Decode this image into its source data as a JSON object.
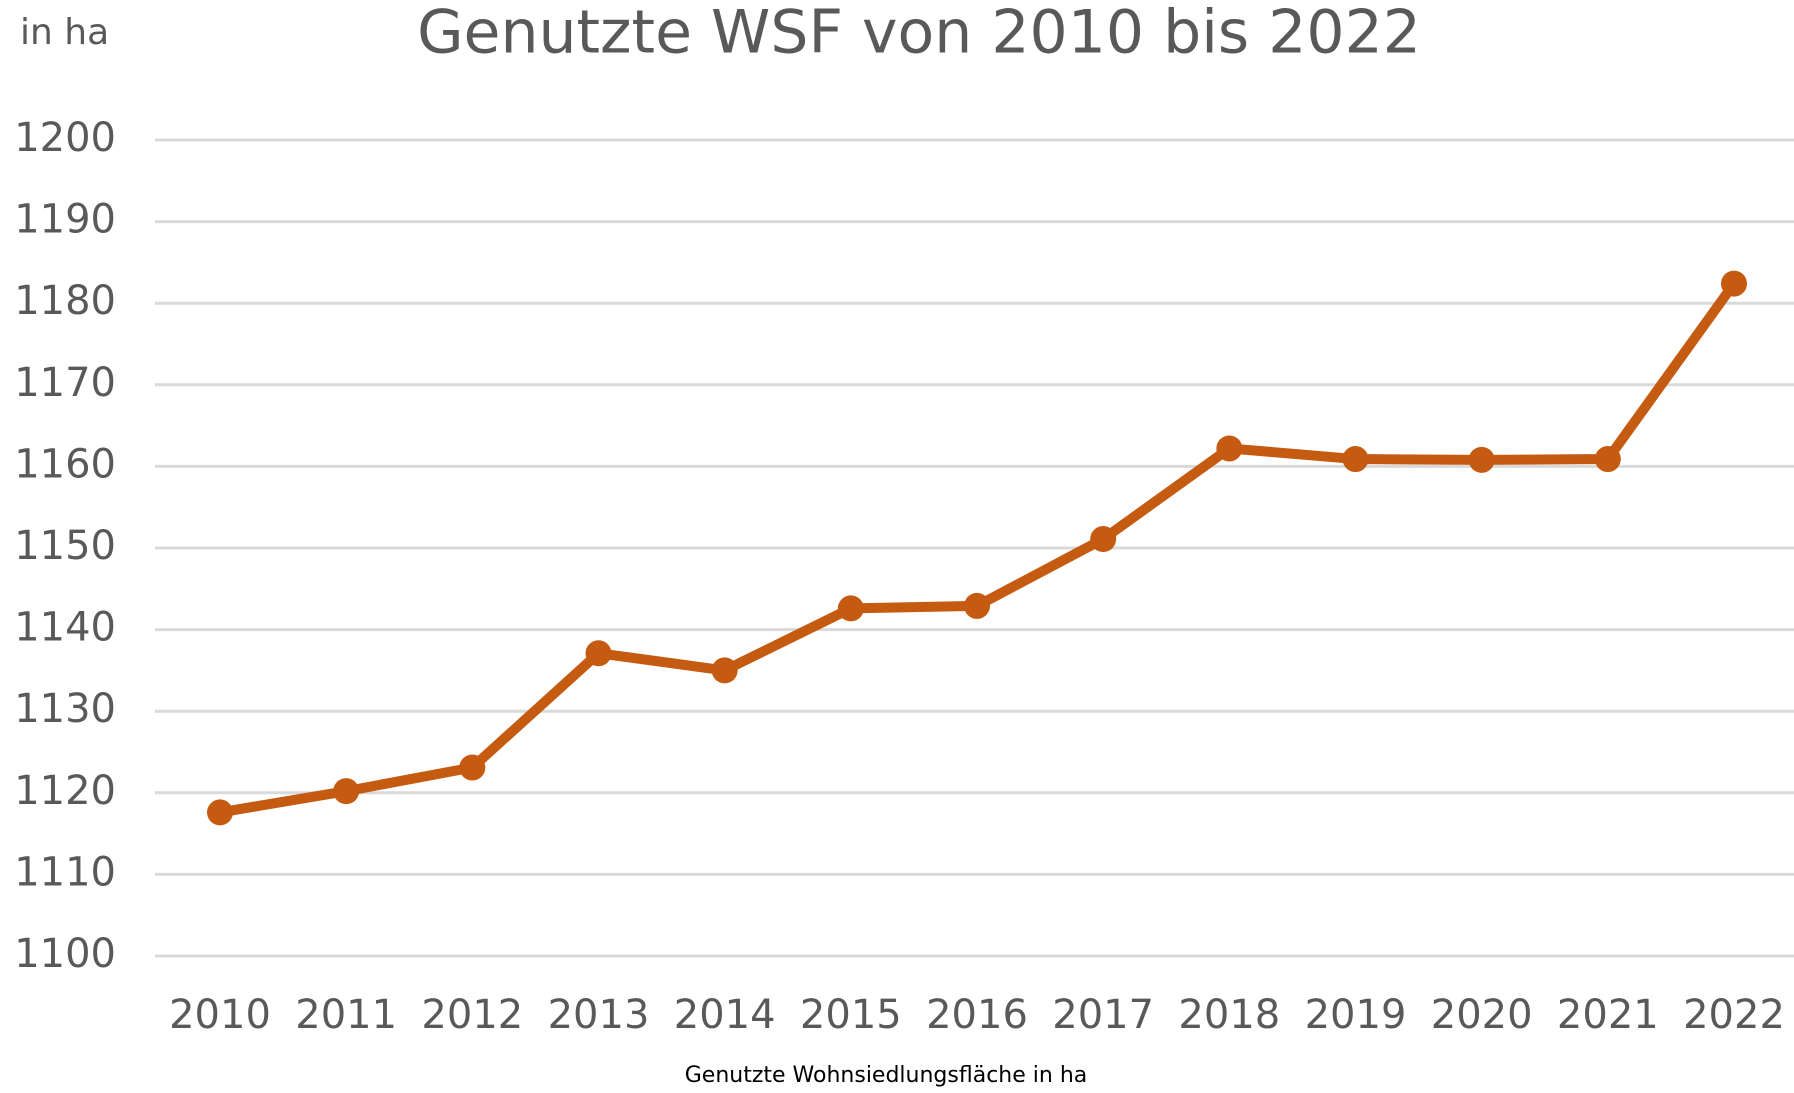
{
  "chart_data": {
    "type": "line",
    "title": "Genutzte WSF von 2010 bis 2022",
    "y_label": "in ha",
    "categories": [
      "2010",
      "2011",
      "2012",
      "2013",
      "2014",
      "2015",
      "2016",
      "2017",
      "2018",
      "2019",
      "2020",
      "2021",
      "2022"
    ],
    "series": [
      {
        "name": "Genutzte Wohnsiedlungsfläche in ha",
        "color": "#c55a11",
        "values": [
          1117.6,
          1120.2,
          1123.1,
          1137.1,
          1135,
          1142.6,
          1142.9,
          1151.1,
          1162.2,
          1160.9,
          1160.8,
          1160.9,
          1182.4
        ]
      }
    ],
    "ylim": [
      1100,
      1200
    ],
    "yticks": [
      1100,
      1110,
      1120,
      1130,
      1140,
      1150,
      1160,
      1170,
      1180,
      1190,
      1200
    ],
    "grid": true
  }
}
